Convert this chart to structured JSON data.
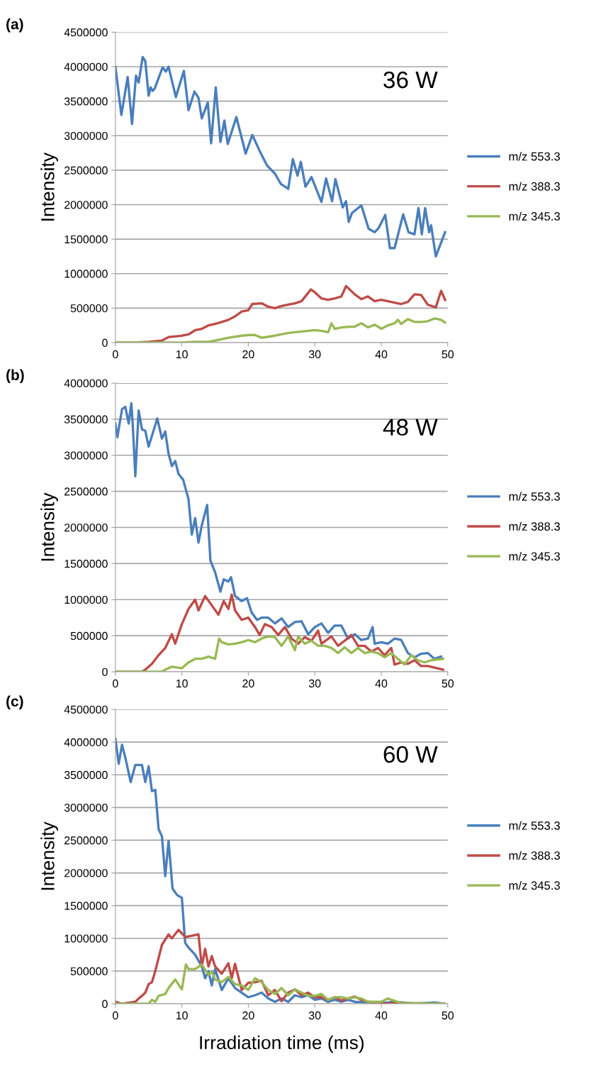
{
  "chart_data": [
    {
      "type": "line",
      "title": "(a)",
      "ylabel": "Intensity",
      "annotations": [
        "36 W"
      ],
      "xlim": [
        0,
        50
      ],
      "xticks": [
        0,
        10,
        20,
        30,
        40,
        50
      ],
      "ylim": [
        0,
        4500000
      ],
      "yticks": [
        0,
        500000,
        1000000,
        1500000,
        2000000,
        2500000,
        3000000,
        3500000,
        4000000,
        4500000
      ],
      "grid": "y",
      "legend": "right",
      "tick_labels": true,
      "series": [
        {
          "name": "m/z 553.3",
          "color": "#4a7ebb",
          "x": [
            0,
            0.9,
            1.85,
            2.5,
            3.1,
            3.5,
            4.1,
            4.5,
            5.0,
            5.3,
            5.6,
            5.9,
            7.1,
            7.6,
            8.0,
            9.1,
            10.3,
            11.0,
            11.9,
            12.5,
            13.0,
            13.9,
            14.4,
            15.1,
            15.8,
            16.4,
            16.9,
            18.2,
            19.6,
            20.6,
            21.7,
            22.8,
            24.0,
            24.9,
            26.0,
            26.7,
            27.4,
            27.9,
            28.6,
            29.5,
            31.0,
            31.7,
            32.6,
            33.1,
            34.2,
            34.7,
            35.1,
            35.6,
            37.0,
            38.1,
            39.0,
            39.6,
            40.6,
            41.3,
            42.0,
            43.3,
            44.1,
            45.0,
            45.6,
            46.1,
            46.6,
            47.2,
            47.5,
            48.2,
            49.6
          ],
          "values": [
            4000000,
            3300000,
            3850000,
            3170000,
            3870000,
            3770000,
            4140000,
            4080000,
            3580000,
            3700000,
            3650000,
            3680000,
            3990000,
            3930000,
            4000000,
            3560000,
            3940000,
            3370000,
            3640000,
            3550000,
            3250000,
            3480000,
            2890000,
            3700000,
            2910000,
            3220000,
            2880000,
            3270000,
            2740000,
            3010000,
            2780000,
            2570000,
            2450000,
            2300000,
            2230000,
            2660000,
            2420000,
            2620000,
            2260000,
            2400000,
            2040000,
            2380000,
            2050000,
            2370000,
            1960000,
            2050000,
            1750000,
            1880000,
            1990000,
            1650000,
            1600000,
            1660000,
            1850000,
            1370000,
            1370000,
            1860000,
            1600000,
            1570000,
            1950000,
            1570000,
            1950000,
            1600000,
            1700000,
            1250000,
            1600000
          ]
        },
        {
          "name": "m/z 388.3",
          "color": "#be4b48",
          "x": [
            0,
            3,
            5,
            7,
            8,
            10,
            11,
            12,
            13,
            14,
            15,
            16,
            17,
            18,
            19,
            20,
            20.6,
            22,
            23,
            24,
            25,
            26,
            27,
            28,
            29.4,
            30,
            31,
            32,
            33,
            34,
            34.7,
            36,
            37,
            38,
            39,
            40,
            41,
            42,
            43,
            44,
            45,
            46,
            47,
            48.2,
            49,
            49.6
          ],
          "values": [
            0,
            0,
            10000,
            30000,
            80000,
            100000,
            120000,
            180000,
            200000,
            250000,
            270000,
            300000,
            330000,
            380000,
            450000,
            470000,
            560000,
            570000,
            520000,
            500000,
            530000,
            550000,
            570000,
            600000,
            770000,
            730000,
            640000,
            620000,
            640000,
            670000,
            820000,
            700000,
            630000,
            670000,
            600000,
            620000,
            600000,
            580000,
            560000,
            590000,
            700000,
            690000,
            550000,
            510000,
            750000,
            620000
          ]
        },
        {
          "name": "m/z 345.3",
          "color": "#98b954",
          "x": [
            0,
            10,
            12,
            14,
            15,
            17,
            19,
            20,
            21,
            22,
            24,
            26,
            28,
            30,
            31,
            32,
            32.5,
            33,
            34,
            35,
            36,
            37,
            38,
            39,
            40,
            41,
            42,
            42.5,
            43,
            44,
            45,
            46,
            47,
            48,
            49,
            49.6
          ],
          "values": [
            0,
            0,
            10000,
            10000,
            30000,
            70000,
            100000,
            110000,
            110000,
            70000,
            100000,
            140000,
            160000,
            180000,
            170000,
            150000,
            280000,
            200000,
            220000,
            230000,
            230000,
            280000,
            220000,
            260000,
            200000,
            250000,
            280000,
            330000,
            270000,
            340000,
            300000,
            300000,
            310000,
            350000,
            330000,
            290000
          ]
        }
      ]
    },
    {
      "type": "line",
      "title": "(b)",
      "ylabel": "Intensity",
      "annotations": [
        "48 W"
      ],
      "xlim": [
        0,
        50
      ],
      "xticks": [
        0,
        10,
        20,
        30,
        40,
        50
      ],
      "ylim": [
        0,
        4000000
      ],
      "yticks": [
        0,
        500000,
        1000000,
        1500000,
        2000000,
        2500000,
        3000000,
        3500000,
        4000000
      ],
      "grid": "y",
      "legend": "right",
      "tick_labels": true,
      "series": [
        {
          "name": "m/z 553.3",
          "color": "#4a7ebb",
          "x": [
            0,
            0.3,
            1,
            1.5,
            2,
            2.4,
            2.6,
            3,
            3.5,
            4,
            4.5,
            5,
            6.3,
            7,
            7.5,
            8,
            8.5,
            9,
            9.5,
            10.2,
            11,
            11.5,
            12,
            12.5,
            13,
            13.8,
            14.3,
            15,
            15.8,
            16.3,
            17,
            17.4,
            18,
            19,
            19.8,
            20.5,
            21.3,
            22,
            23,
            24,
            25,
            26,
            27,
            28,
            29,
            30,
            31,
            32,
            33,
            34,
            35,
            36,
            37,
            38,
            38.7,
            39,
            40,
            41,
            42,
            43,
            44,
            45,
            46,
            47,
            48,
            49
          ],
          "values": [
            3440000,
            3250000,
            3640000,
            3670000,
            3440000,
            3720000,
            3440000,
            2710000,
            3620000,
            3360000,
            3340000,
            3120000,
            3510000,
            3230000,
            3330000,
            3020000,
            2850000,
            2920000,
            2740000,
            2660000,
            2390000,
            1900000,
            2130000,
            1790000,
            2030000,
            2310000,
            1540000,
            1380000,
            1110000,
            1280000,
            1250000,
            1310000,
            1050000,
            980000,
            1020000,
            820000,
            720000,
            750000,
            750000,
            670000,
            740000,
            620000,
            690000,
            700000,
            520000,
            620000,
            670000,
            540000,
            640000,
            640000,
            460000,
            520000,
            440000,
            460000,
            620000,
            390000,
            410000,
            390000,
            460000,
            440000,
            260000,
            200000,
            250000,
            260000,
            180000,
            210000
          ]
        },
        {
          "name": "m/z 388.3",
          "color": "#be4b48",
          "x": [
            0,
            4,
            4.5,
            5.5,
            6.5,
            7.5,
            8.5,
            9,
            10,
            11,
            12,
            12.5,
            13.5,
            14.5,
            15.5,
            16.3,
            17,
            17.5,
            18,
            19,
            20,
            21,
            21.7,
            22.5,
            23.5,
            24.5,
            25.5,
            26.5,
            27.5,
            28.5,
            29.5,
            30.5,
            31,
            32.5,
            33.5,
            34.5,
            35.5,
            36.5,
            37.5,
            38.5,
            39.5,
            40.5,
            41.5,
            42,
            43,
            44,
            45,
            46,
            47,
            49.3
          ],
          "values": [
            0,
            0,
            30000,
            110000,
            230000,
            330000,
            520000,
            390000,
            660000,
            870000,
            1000000,
            850000,
            1050000,
            920000,
            790000,
            980000,
            870000,
            1070000,
            850000,
            720000,
            750000,
            620000,
            510000,
            660000,
            620000,
            510000,
            620000,
            460000,
            390000,
            480000,
            430000,
            570000,
            390000,
            490000,
            360000,
            430000,
            510000,
            360000,
            360000,
            280000,
            330000,
            230000,
            330000,
            100000,
            130000,
            110000,
            160000,
            80000,
            80000,
            30000
          ]
        },
        {
          "name": "m/z 345.3",
          "color": "#98b954",
          "x": [
            0,
            7,
            7.5,
            8.5,
            10,
            11,
            12,
            13,
            14,
            15,
            15.6,
            16,
            17,
            18,
            19,
            20,
            21,
            22,
            23,
            24,
            25,
            26,
            27,
            27.5,
            28.5,
            29.5,
            30.5,
            31.5,
            32.5,
            33.5,
            34.5,
            35.5,
            36.5,
            37.5,
            38.5,
            39.5,
            40.5,
            41.5,
            42.5,
            43.5,
            44.5,
            45.5,
            46.5,
            47.5,
            49.3
          ],
          "values": [
            0,
            0,
            30000,
            70000,
            50000,
            130000,
            180000,
            180000,
            210000,
            180000,
            460000,
            410000,
            380000,
            390000,
            410000,
            440000,
            410000,
            460000,
            490000,
            480000,
            360000,
            490000,
            300000,
            490000,
            390000,
            430000,
            360000,
            360000,
            330000,
            260000,
            340000,
            260000,
            330000,
            260000,
            280000,
            260000,
            200000,
            260000,
            180000,
            100000,
            230000,
            160000,
            130000,
            160000,
            180000
          ]
        }
      ]
    },
    {
      "type": "line",
      "title": "(c)",
      "ylabel": "Intensity",
      "xlabel": "Irradiation time (ms)",
      "annotations": [
        "60 W"
      ],
      "xlim": [
        0,
        50
      ],
      "xticks": [
        0,
        10,
        20,
        30,
        40,
        50
      ],
      "ylim": [
        0,
        4500000
      ],
      "yticks": [
        0,
        500000,
        1000000,
        1500000,
        2000000,
        2500000,
        3000000,
        3500000,
        4000000,
        4500000
      ],
      "grid": "y",
      "legend": "right",
      "tick_labels": true,
      "series": [
        {
          "name": "m/z 553.3",
          "color": "#4a7ebb",
          "x": [
            0,
            0.5,
            1,
            1.5,
            2.3,
            3,
            4,
            4.5,
            5,
            5.5,
            6,
            6.5,
            7,
            7.5,
            8,
            8.6,
            9.3,
            10,
            10.5,
            11,
            12,
            13,
            13.5,
            14,
            14.5,
            15,
            16,
            17,
            18,
            19,
            20,
            21,
            22,
            23,
            24,
            25,
            26,
            27,
            28,
            29,
            30,
            31,
            32,
            33,
            34,
            35,
            36,
            38,
            40,
            42,
            45,
            48,
            49.5
          ],
          "values": [
            4050000,
            3670000,
            3960000,
            3760000,
            3390000,
            3650000,
            3650000,
            3390000,
            3630000,
            3250000,
            3270000,
            2670000,
            2560000,
            1950000,
            2490000,
            1760000,
            1660000,
            1620000,
            930000,
            860000,
            750000,
            570000,
            390000,
            500000,
            280000,
            530000,
            210000,
            390000,
            240000,
            170000,
            100000,
            130000,
            170000,
            80000,
            30000,
            80000,
            30000,
            130000,
            100000,
            130000,
            60000,
            80000,
            30000,
            60000,
            30000,
            60000,
            30000,
            20000,
            10000,
            30000,
            0,
            20000,
            0
          ]
        },
        {
          "name": "m/z 388.3",
          "color": "#be4b48",
          "x": [
            0,
            1,
            3,
            3.5,
            4,
            4.5,
            5,
            5.5,
            6,
            7,
            8,
            8.5,
            9.5,
            10.5,
            11.5,
            12.5,
            13,
            13.5,
            14,
            14.5,
            15,
            16,
            17,
            17.5,
            18,
            19,
            20,
            21,
            22,
            23,
            24,
            25,
            26,
            27,
            28,
            29,
            30,
            31,
            32,
            33,
            34,
            35,
            36,
            37,
            38,
            40,
            42,
            49.5
          ],
          "values": [
            30000,
            0,
            30000,
            80000,
            120000,
            170000,
            300000,
            330000,
            500000,
            900000,
            1060000,
            1000000,
            1130000,
            1020000,
            1040000,
            1060000,
            570000,
            840000,
            570000,
            730000,
            570000,
            460000,
            620000,
            390000,
            610000,
            210000,
            320000,
            330000,
            350000,
            130000,
            210000,
            40000,
            170000,
            220000,
            130000,
            170000,
            100000,
            100000,
            60000,
            100000,
            50000,
            80000,
            110000,
            60000,
            30000,
            0,
            10000,
            0
          ]
        },
        {
          "name": "m/z 345.3",
          "color": "#98b954",
          "x": [
            0,
            5,
            5.5,
            6,
            6.5,
            7.5,
            8,
            9,
            10,
            10.6,
            11,
            12,
            13,
            14,
            14.5,
            15,
            16,
            17,
            18,
            19,
            20,
            21,
            22,
            23,
            24,
            25,
            26,
            27,
            28,
            29,
            30,
            31,
            32,
            33,
            34,
            35,
            36,
            37,
            38,
            40,
            41,
            43,
            46,
            49.5
          ],
          "values": [
            0,
            0,
            60000,
            30000,
            120000,
            150000,
            240000,
            370000,
            220000,
            600000,
            530000,
            530000,
            600000,
            440000,
            500000,
            370000,
            330000,
            410000,
            300000,
            280000,
            210000,
            390000,
            330000,
            210000,
            150000,
            240000,
            130000,
            220000,
            170000,
            120000,
            120000,
            150000,
            60000,
            100000,
            100000,
            80000,
            100000,
            80000,
            30000,
            30000,
            80000,
            10000,
            10000,
            0
          ]
        }
      ]
    }
  ]
}
